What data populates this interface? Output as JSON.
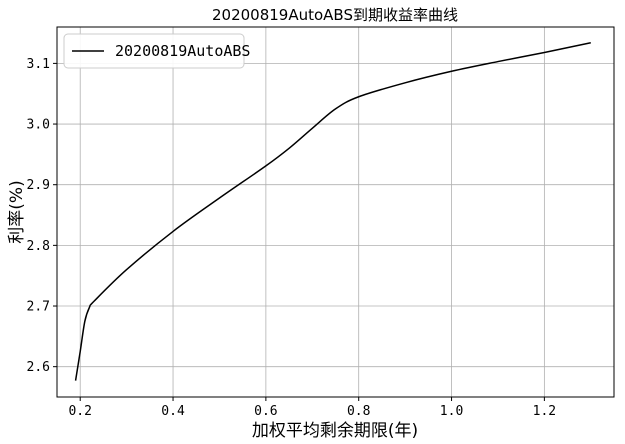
{
  "chart_data": {
    "type": "line",
    "title": "20200819AutoABS到期收益率曲线",
    "xlabel": "加权平均剩余期限(年)",
    "ylabel": "利率(%)",
    "xlim": [
      0.15,
      1.35
    ],
    "ylim": [
      2.55,
      3.16
    ],
    "xticks": [
      "0.2",
      "0.4",
      "0.6",
      "0.8",
      "1.0",
      "1.2"
    ],
    "yticks": [
      "2.6",
      "2.7",
      "2.8",
      "2.9",
      "3.0",
      "3.1"
    ],
    "grid": true,
    "legend_position": "top-left",
    "series": [
      {
        "name": "20200819AutoABS",
        "color": "#000000",
        "x": [
          0.19,
          0.2,
          0.21,
          0.22,
          0.23,
          0.3,
          0.4,
          0.5,
          0.6,
          0.65,
          0.7,
          0.75,
          0.8,
          0.9,
          1.0,
          1.1,
          1.2,
          1.3
        ],
        "y": [
          2.577,
          2.625,
          2.675,
          2.698,
          2.708,
          2.76,
          2.823,
          2.878,
          2.931,
          2.96,
          2.993,
          3.025,
          3.045,
          3.068,
          3.087,
          3.103,
          3.118,
          3.134
        ]
      }
    ]
  }
}
